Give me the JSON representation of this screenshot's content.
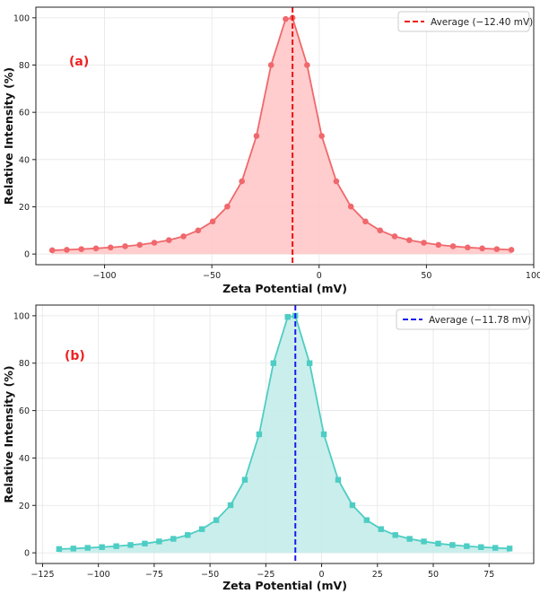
{
  "chart_data": [
    {
      "type": "line",
      "panel_label": "(a)",
      "xlabel": "Zeta Potential (mV)",
      "ylabel": "Relative Intensity (%)",
      "xlim": [
        -132,
        100
      ],
      "ylim": [
        -4.5,
        104.5
      ],
      "xticks": [
        -100,
        -50,
        0,
        50,
        100
      ],
      "xtick_labels": [
        "−100",
        "−50",
        "0",
        "50",
        "100"
      ],
      "yticks": [
        0,
        20,
        40,
        60,
        80,
        100
      ],
      "ytick_labels": [
        "0",
        "20",
        "40",
        "60",
        "80",
        "100"
      ],
      "grid": true,
      "legend_position": "top-right",
      "colors": {
        "line": "#f0686c",
        "fill": "#ffc8c8",
        "average": "#ee1111",
        "label": "#ee2222"
      },
      "marker": "circle",
      "average": {
        "value": -12.4,
        "label": "Average (−12.40 mV)"
      },
      "series": [
        {
          "name": "Intensity",
          "x": [
            -124.4,
            -117.6,
            -110.8,
            -104.0,
            -97.2,
            -90.4,
            -83.6,
            -76.8,
            -70.0,
            -63.2,
            -56.4,
            -49.6,
            -42.8,
            -36.0,
            -29.2,
            -22.4,
            -15.6,
            -12.4,
            -5.6,
            1.2,
            8.0,
            14.8,
            21.6,
            28.4,
            35.2,
            42.0,
            48.8,
            55.6,
            62.4,
            69.2,
            76.0,
            82.8,
            89.6
          ],
          "y": [
            1.6,
            1.8,
            2.1,
            2.4,
            2.8,
            3.3,
            3.9,
            4.8,
            5.9,
            7.5,
            10.0,
            13.8,
            20.1,
            30.8,
            50.0,
            80.0,
            99.5,
            100.0,
            80.0,
            50.0,
            30.8,
            20.1,
            13.8,
            10.0,
            7.5,
            5.9,
            4.8,
            3.9,
            3.3,
            2.8,
            2.4,
            2.1,
            1.8
          ]
        }
      ]
    },
    {
      "type": "line",
      "panel_label": "(b)",
      "xlabel": "Zeta Potential (mV)",
      "ylabel": "Relative Intensity (%)",
      "xlim": [
        -128,
        95
      ],
      "ylim": [
        -4.5,
        104.5
      ],
      "xticks": [
        -125,
        -100,
        -75,
        -50,
        -25,
        0,
        25,
        50,
        75
      ],
      "xtick_labels": [
        "−125",
        "−100",
        "−75",
        "−50",
        "−25",
        "0",
        "25",
        "50",
        "75"
      ],
      "yticks": [
        0,
        20,
        40,
        60,
        80,
        100
      ],
      "ytick_labels": [
        "0",
        "20",
        "40",
        "60",
        "80",
        "100"
      ],
      "grid": true,
      "legend_position": "top-right",
      "colors": {
        "line": "#4ecdc4",
        "fill": "#c4ece9",
        "average": "#1a1aee",
        "label": "#ee2222"
      },
      "marker": "square",
      "average": {
        "value": -11.78,
        "label": "Average (−11.78 mV)"
      },
      "series": [
        {
          "name": "Intensity",
          "x": [
            -117.6,
            -111.2,
            -104.8,
            -98.4,
            -92.0,
            -85.6,
            -79.2,
            -72.8,
            -66.4,
            -60.0,
            -53.6,
            -47.2,
            -40.8,
            -34.4,
            -28.0,
            -21.6,
            -15.2,
            -11.8,
            -5.4,
            1.0,
            7.4,
            13.8,
            20.2,
            26.6,
            33.0,
            39.4,
            45.8,
            52.2,
            58.6,
            65.0,
            71.4,
            77.8,
            84.2
          ],
          "y": [
            1.6,
            1.8,
            2.1,
            2.4,
            2.8,
            3.3,
            3.9,
            4.8,
            5.9,
            7.5,
            10.0,
            13.8,
            20.1,
            30.8,
            50.0,
            80.0,
            99.5,
            100.0,
            80.0,
            50.0,
            30.8,
            20.1,
            13.8,
            10.0,
            7.5,
            5.9,
            4.8,
            3.9,
            3.3,
            2.8,
            2.4,
            2.1,
            1.8
          ]
        }
      ]
    }
  ]
}
